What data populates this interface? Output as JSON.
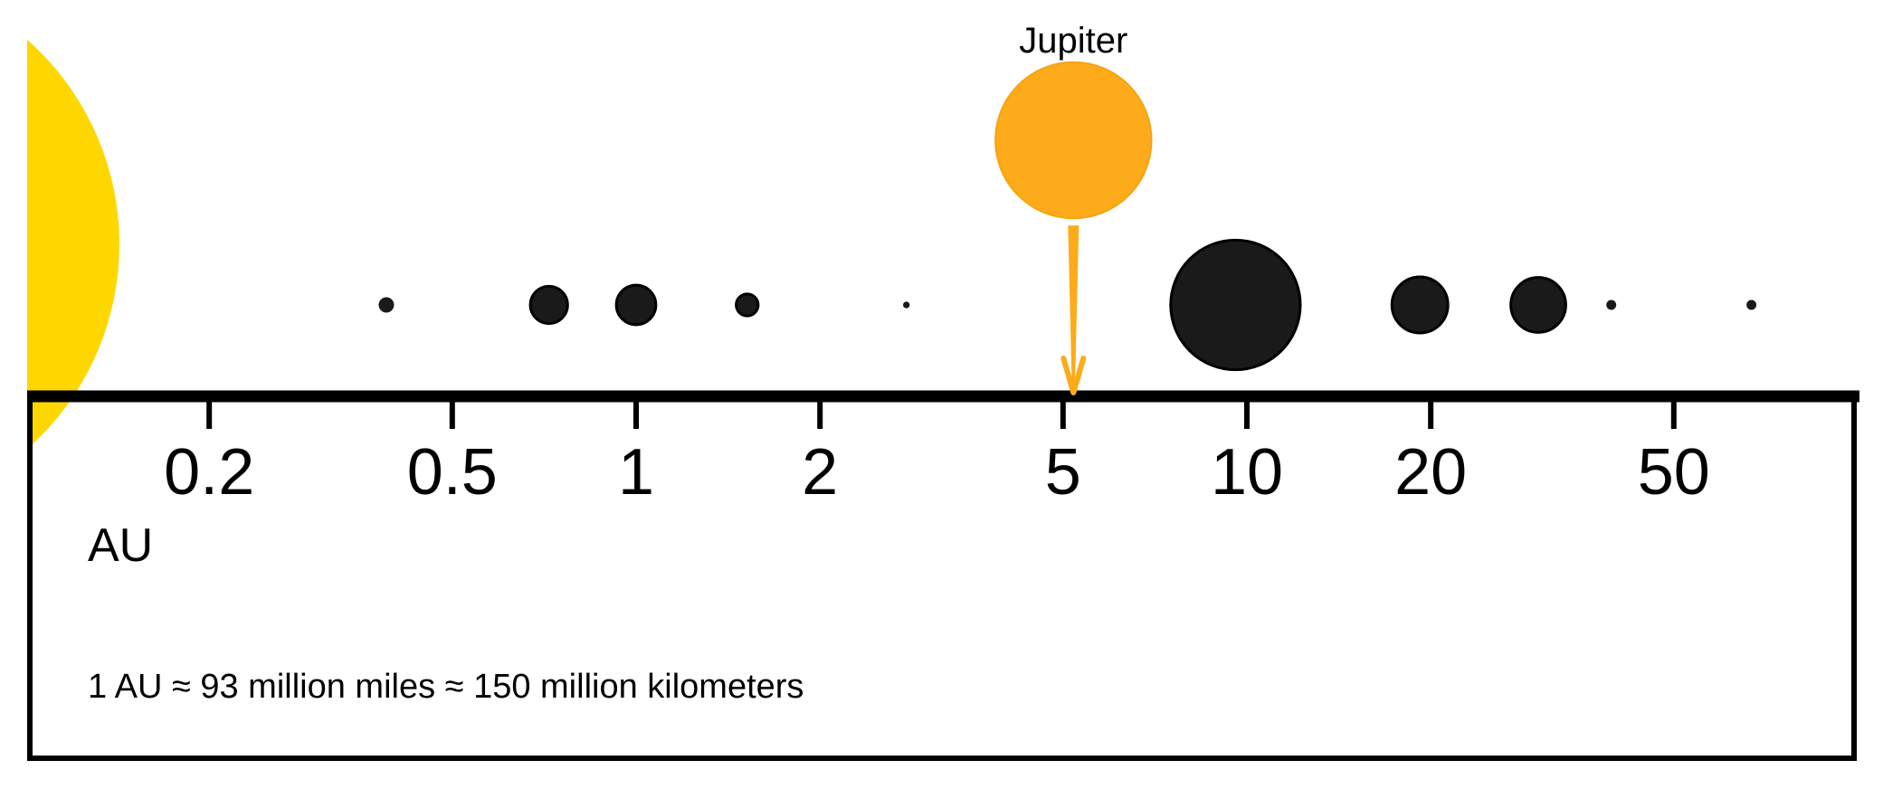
{
  "diagram": {
    "highlight_label": "Jupiter",
    "unit_label": "AU",
    "footnote": "1 AU ≈ 93 million miles ≈ 150 million kilometers"
  },
  "chart_data": {
    "type": "scatter",
    "scale": "log",
    "xlabel": "AU",
    "xlim": [
      0.1,
      100
    ],
    "ticks": [
      {
        "value": 0.2,
        "label": "0.2"
      },
      {
        "value": 0.5,
        "label": "0.5"
      },
      {
        "value": 1,
        "label": "1"
      },
      {
        "value": 2,
        "label": "2"
      },
      {
        "value": 5,
        "label": "5"
      },
      {
        "value": 10,
        "label": "10"
      },
      {
        "value": 20,
        "label": "20"
      },
      {
        "value": 50,
        "label": "50"
      }
    ],
    "bodies": [
      {
        "au": 0.39,
        "size": 1.4
      },
      {
        "au": 0.72,
        "size": 3.4
      },
      {
        "au": 1.0,
        "size": 3.6
      },
      {
        "au": 1.52,
        "size": 2.0
      },
      {
        "au": 2.77,
        "size": 0.6
      },
      {
        "au": 9.58,
        "size": 11.8
      },
      {
        "au": 19.2,
        "size": 5.1
      },
      {
        "au": 30.0,
        "size": 5.0
      },
      {
        "au": 39.5,
        "size": 0.9
      },
      {
        "au": 67.0,
        "size": 0.9
      }
    ],
    "highlight": {
      "au": 5.2,
      "size": 14.2,
      "color": "#FDAB1A"
    },
    "sun_color": "#FFD700",
    "body_color": "#1a1a1a"
  }
}
